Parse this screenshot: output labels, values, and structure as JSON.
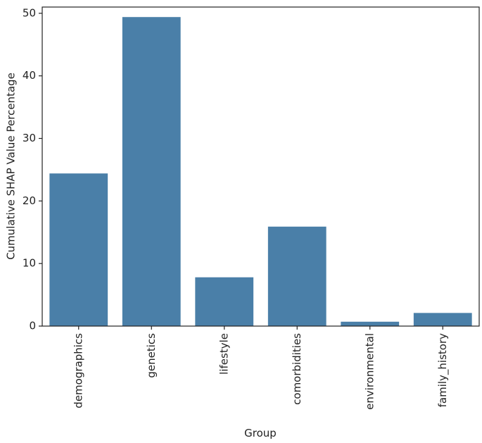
{
  "chart_data": {
    "type": "bar",
    "x_label": "Group",
    "y_label": "Cumulative SHAP Value Percentage",
    "categories": [
      "demographics",
      "genetics",
      "lifestyle",
      "comorbidities",
      "environmental",
      "family_history"
    ],
    "values": [
      24.4,
      49.4,
      7.8,
      15.9,
      0.7,
      2.1
    ],
    "color": "#4a7fa8",
    "ylim": [
      0,
      51
    ],
    "yticks": [
      0,
      10,
      20,
      30,
      40,
      50
    ],
    "grid": false
  }
}
